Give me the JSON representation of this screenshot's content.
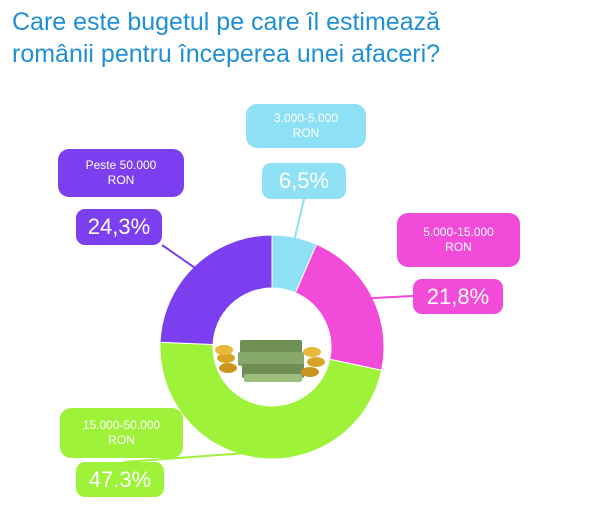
{
  "title": {
    "line1": "Care este bugetul pe care îl estimează",
    "line2": "românii pentru începerea unei afaceri?"
  },
  "chart_data": {
    "type": "pie",
    "categories": [
      "3.000-5.000 RON",
      "5.000-15.000 RON",
      "15.000-50.000 RON",
      "Peste 50.000 RON"
    ],
    "values": [
      6.5,
      21.8,
      47.3,
      24.3
    ],
    "value_labels": [
      "6,5%",
      "21,8%",
      "47.3%",
      "24,3%"
    ],
    "colors": [
      "#8ee0f5",
      "#f24ad9",
      "#9ef23a",
      "#7b3ff0"
    ],
    "donut": true
  },
  "callouts": [
    {
      "line1": "3.000-5.000",
      "line2": "RON",
      "value": "6,5%"
    },
    {
      "line1": "5.000-15.000",
      "line2": "RON",
      "value": "21,8%"
    },
    {
      "line1": "15.000-50.000",
      "line2": "RON",
      "value": "47.3%"
    },
    {
      "line1": "Peste 50.000",
      "line2": "RON",
      "value": "24,3%"
    }
  ],
  "center_image": "money-stack-icon"
}
